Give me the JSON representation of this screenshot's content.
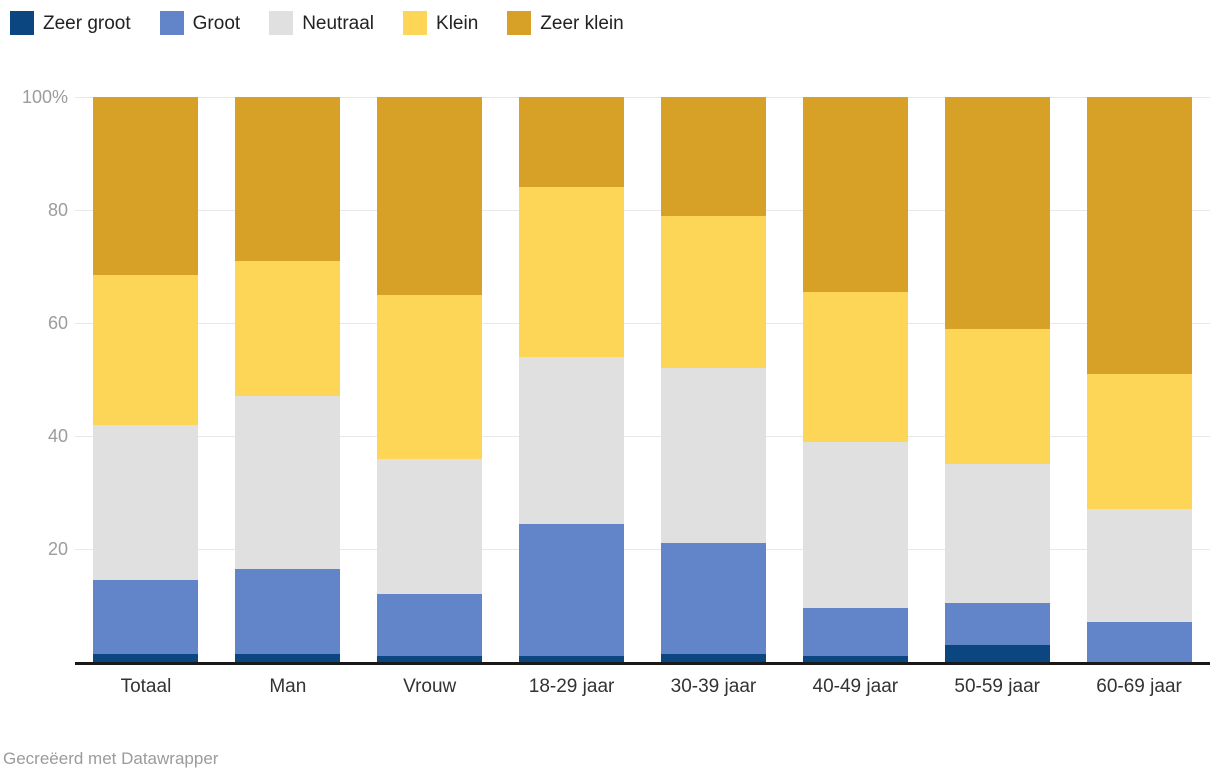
{
  "legend": {
    "items": [
      {
        "label": "Zeer groot",
        "color": "#0b4680"
      },
      {
        "label": "Groot",
        "color": "#6284c8"
      },
      {
        "label": "Neutraal",
        "color": "#e0e0e0"
      },
      {
        "label": "Klein",
        "color": "#fdd557"
      },
      {
        "label": "Zeer klein",
        "color": "#d6a126"
      }
    ]
  },
  "chart_data": {
    "type": "bar",
    "stacked": true,
    "stacked_to_100_percent": true,
    "categories": [
      "Totaal",
      "Man",
      "Vrouw",
      "18-29 jaar",
      "30-39 jaar",
      "40-49 jaar",
      "50-59 jaar",
      "60-69 jaar"
    ],
    "series": [
      {
        "name": "Zeer groot",
        "color": "#0b4680",
        "values": [
          1.5,
          1.5,
          1.0,
          1.0,
          1.5,
          1.0,
          3.0,
          0.0
        ]
      },
      {
        "name": "Groot",
        "color": "#6284c8",
        "values": [
          13.0,
          15.0,
          11.0,
          23.5,
          19.5,
          8.5,
          7.5,
          7.0
        ]
      },
      {
        "name": "Neutraal",
        "color": "#e0e0e0",
        "values": [
          27.5,
          30.5,
          24.0,
          29.5,
          31.0,
          29.5,
          24.5,
          20.0
        ]
      },
      {
        "name": "Klein",
        "color": "#fdd557",
        "values": [
          26.5,
          24.0,
          29.0,
          30.0,
          27.0,
          26.5,
          24.0,
          24.0
        ]
      },
      {
        "name": "Zeer klein",
        "color": "#d6a126",
        "values": [
          31.5,
          29.0,
          35.0,
          16.0,
          21.0,
          34.5,
          41.0,
          49.0
        ]
      }
    ],
    "title": "",
    "xlabel": "",
    "ylabel": "",
    "ylim": [
      0,
      100
    ],
    "y_ticks": [
      {
        "value": 100,
        "label": "100%"
      },
      {
        "value": 80,
        "label": "80"
      },
      {
        "value": 60,
        "label": "60"
      },
      {
        "value": 40,
        "label": "40"
      },
      {
        "value": 20,
        "label": "20"
      }
    ],
    "grid": true,
    "legend_position": "top-left",
    "colors": {
      "gridline": "#e8e8e8",
      "axis_line": "#191919",
      "y_tick_text": "#9c9c9c",
      "x_tick_text": "#333333"
    }
  },
  "footer": {
    "credit": "Gecreëerd met Datawrapper"
  }
}
